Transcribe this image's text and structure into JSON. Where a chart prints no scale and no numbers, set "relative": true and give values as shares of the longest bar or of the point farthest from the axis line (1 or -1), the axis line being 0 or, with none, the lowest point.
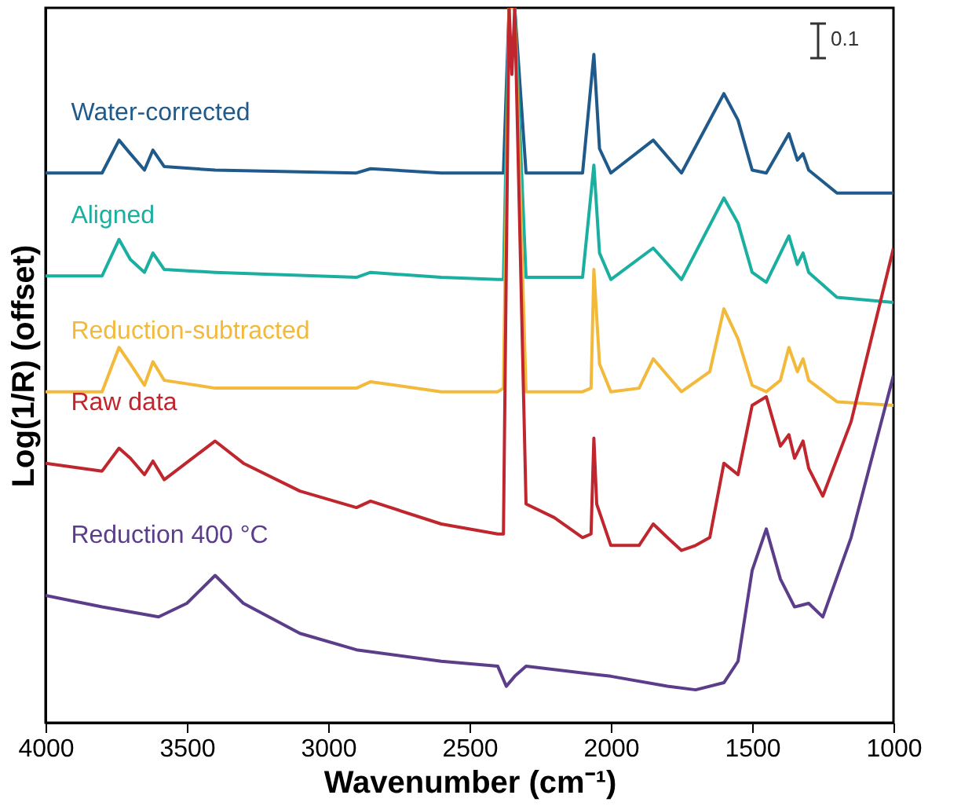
{
  "chart_data": {
    "type": "line",
    "relative": true,
    "xlabel": "Wavenumber (cm⁻¹)",
    "ylabel": "Log(1/R) (offset)",
    "xlim": [
      4000,
      1000
    ],
    "xticks": [
      4000,
      3500,
      3000,
      2500,
      2000,
      1500,
      1000
    ],
    "grid": false,
    "legend": false,
    "annotations": [
      "0.1"
    ],
    "series": [
      {
        "name": "Water-corrected",
        "color": "#1f5a8a",
        "x": [
          4000,
          3800,
          3740,
          3700,
          3650,
          3620,
          3580,
          3400,
          2900,
          2850,
          2600,
          2400,
          2380,
          2360,
          2340,
          2300,
          2100,
          2060,
          2040,
          2000,
          1850,
          1750,
          1600,
          1550,
          1500,
          1450,
          1370,
          1340,
          1320,
          1300,
          1200,
          1000
        ],
        "values": [
          0.769,
          0.769,
          0.815,
          0.796,
          0.773,
          0.801,
          0.778,
          0.773,
          0.769,
          0.775,
          0.769,
          0.769,
          0.769,
          1.0,
          1.0,
          0.769,
          0.769,
          0.935,
          0.803,
          0.769,
          0.815,
          0.769,
          0.88,
          0.843,
          0.773,
          0.769,
          0.824,
          0.787,
          0.796,
          0.773,
          0.741,
          0.741
        ]
      },
      {
        "name": "Aligned",
        "color": "#1aafa0",
        "x": [
          4000,
          3800,
          3740,
          3700,
          3650,
          3620,
          3580,
          3400,
          2900,
          2850,
          2600,
          2400,
          2380,
          2360,
          2340,
          2300,
          2100,
          2060,
          2040,
          2000,
          1850,
          1750,
          1600,
          1550,
          1500,
          1450,
          1370,
          1340,
          1320,
          1300,
          1200,
          1000
        ],
        "values": [
          0.625,
          0.625,
          0.676,
          0.648,
          0.63,
          0.657,
          0.634,
          0.63,
          0.623,
          0.63,
          0.623,
          0.62,
          0.62,
          1.0,
          1.0,
          0.623,
          0.623,
          0.78,
          0.657,
          0.62,
          0.664,
          0.62,
          0.734,
          0.699,
          0.63,
          0.616,
          0.681,
          0.641,
          0.657,
          0.63,
          0.595,
          0.588
        ]
      },
      {
        "name": "Reduction-subtracted",
        "color": "#f2b93b",
        "x": [
          4000,
          3800,
          3740,
          3700,
          3650,
          3620,
          3580,
          3400,
          2900,
          2850,
          2600,
          2400,
          2380,
          2360,
          2340,
          2300,
          2100,
          2070,
          2060,
          2040,
          2000,
          1900,
          1850,
          1800,
          1750,
          1650,
          1600,
          1550,
          1500,
          1450,
          1400,
          1370,
          1340,
          1320,
          1300,
          1200,
          1000
        ],
        "values": [
          0.463,
          0.463,
          0.525,
          0.502,
          0.472,
          0.505,
          0.479,
          0.468,
          0.468,
          0.477,
          0.463,
          0.463,
          0.468,
          1.0,
          1.0,
          0.463,
          0.463,
          0.468,
          0.634,
          0.502,
          0.463,
          0.468,
          0.509,
          0.486,
          0.463,
          0.491,
          0.579,
          0.537,
          0.472,
          0.463,
          0.479,
          0.525,
          0.491,
          0.509,
          0.479,
          0.449,
          0.444
        ]
      },
      {
        "name": "Raw data",
        "color": "#c0262e",
        "x": [
          4000,
          3800,
          3740,
          3700,
          3650,
          3620,
          3580,
          3400,
          3300,
          3100,
          2900,
          2850,
          2600,
          2400,
          2380,
          2360,
          2350,
          2340,
          2300,
          2200,
          2100,
          2070,
          2060,
          2050,
          2000,
          1900,
          1850,
          1800,
          1750,
          1700,
          1650,
          1600,
          1550,
          1500,
          1450,
          1400,
          1370,
          1350,
          1320,
          1300,
          1250,
          1150,
          1000
        ],
        "values": [
          0.363,
          0.352,
          0.384,
          0.37,
          0.347,
          0.366,
          0.34,
          0.394,
          0.363,
          0.324,
          0.301,
          0.31,
          0.278,
          0.264,
          0.264,
          1.0,
          0.907,
          1.0,
          0.306,
          0.287,
          0.259,
          0.264,
          0.398,
          0.306,
          0.248,
          0.248,
          0.278,
          0.259,
          0.241,
          0.248,
          0.259,
          0.363,
          0.347,
          0.444,
          0.456,
          0.387,
          0.403,
          0.37,
          0.394,
          0.356,
          0.317,
          0.421,
          0.664
        ]
      },
      {
        "name": "Reduction 400 °C",
        "color": "#5b3d8a",
        "x": [
          4000,
          3800,
          3600,
          3500,
          3400,
          3300,
          3100,
          2900,
          2600,
          2400,
          2370,
          2340,
          2300,
          2000,
          1800,
          1700,
          1600,
          1550,
          1500,
          1450,
          1400,
          1350,
          1300,
          1250,
          1150,
          1000
        ],
        "values": [
          0.178,
          0.162,
          0.148,
          0.167,
          0.206,
          0.167,
          0.125,
          0.102,
          0.086,
          0.079,
          0.051,
          0.065,
          0.079,
          0.065,
          0.051,
          0.046,
          0.056,
          0.086,
          0.213,
          0.271,
          0.201,
          0.162,
          0.167,
          0.148,
          0.259,
          0.486
        ]
      }
    ]
  }
}
